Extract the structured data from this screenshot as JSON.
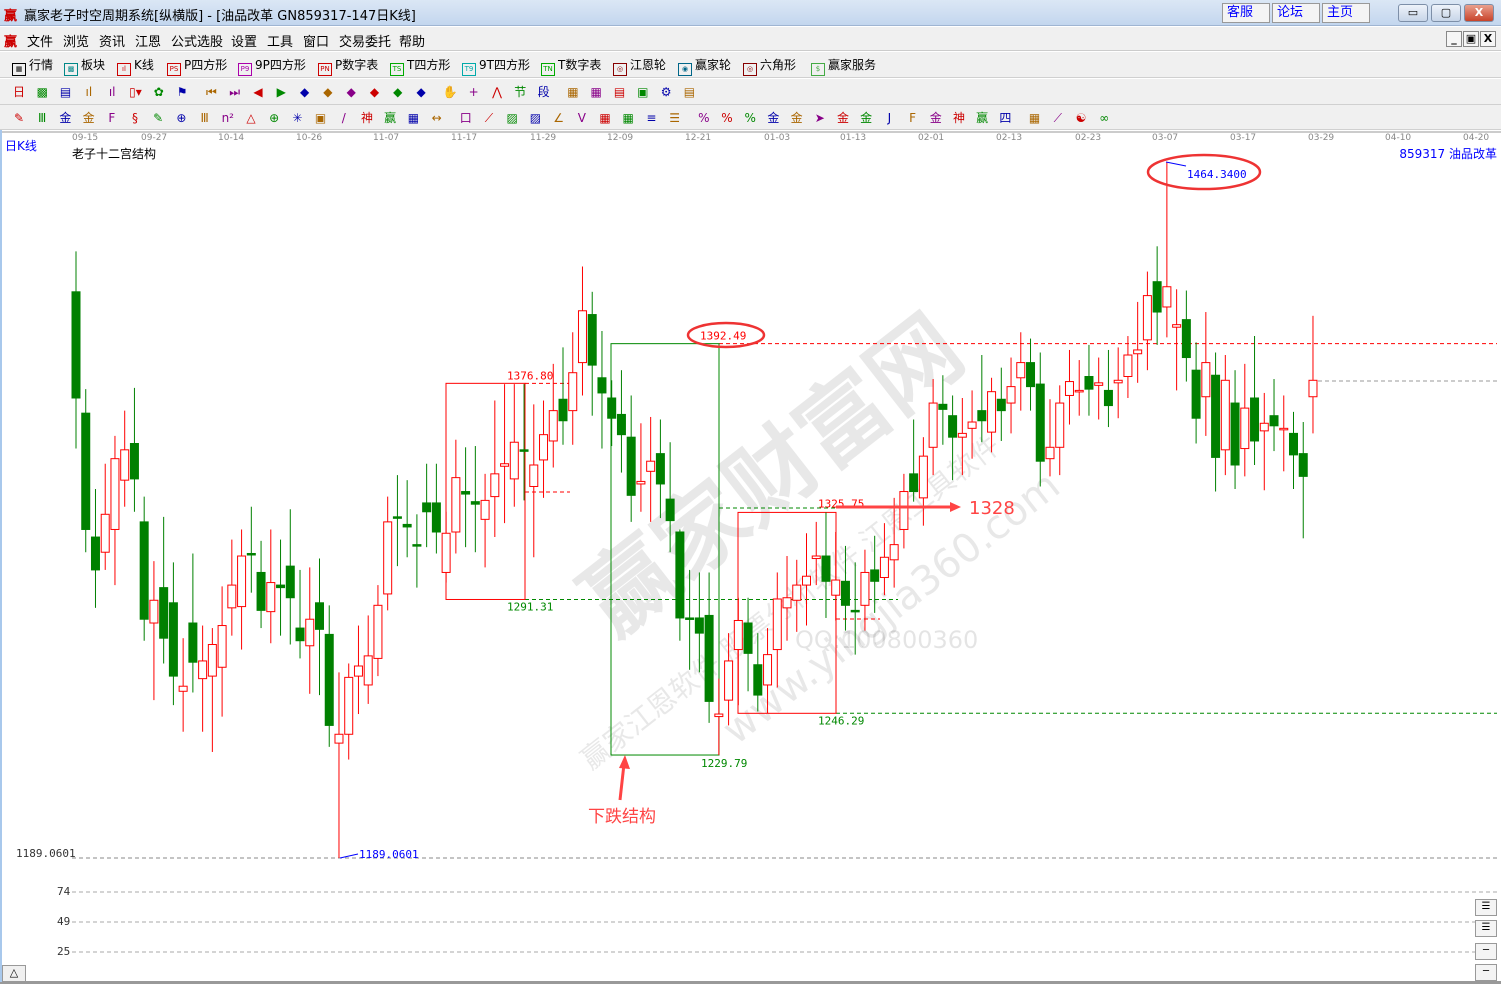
{
  "window": {
    "logo": "赢",
    "title": "赢家老子时空周期系统[纵横版] - [油品改革  GN859317-147日K线]",
    "links": [
      "客服",
      "论坛",
      "主页"
    ],
    "controls": [
      "▭",
      "▢",
      "X"
    ]
  },
  "menu": {
    "logo": "赢",
    "items": [
      "文件",
      "浏览",
      "资讯",
      "江恩",
      "公式选股",
      "设置",
      "工具",
      "窗口",
      "交易委托",
      "帮助"
    ],
    "mdi": [
      "_",
      "▣",
      "X"
    ]
  },
  "toolbar1": [
    {
      "icon": "table-icon",
      "tag": "▦",
      "label": "行情"
    },
    {
      "icon": "blocks-icon",
      "tag": "▩",
      "label": "板块"
    },
    {
      "icon": "kline-icon",
      "tag": "ıl",
      "label": "K线"
    },
    {
      "icon": "ps-icon",
      "tag": "PS",
      "label": "P四方形"
    },
    {
      "icon": "p9-icon",
      "tag": "P9",
      "label": "9P四方形"
    },
    {
      "icon": "pn-icon",
      "tag": "PN",
      "label": "P数字表"
    },
    {
      "icon": "ts-icon",
      "tag": "TS",
      "label": "T四方形"
    },
    {
      "icon": "t9-icon",
      "tag": "T9",
      "label": "9T四方形"
    },
    {
      "icon": "tn-icon",
      "tag": "TN",
      "label": "T数字表"
    },
    {
      "icon": "gann-wheel-icon",
      "tag": "◎",
      "label": "江恩轮"
    },
    {
      "icon": "yingjia-wheel-icon",
      "tag": "◉",
      "label": "赢家轮"
    },
    {
      "icon": "hexagon-icon",
      "tag": "◎",
      "label": "六角形"
    },
    {
      "icon": "dollar-icon",
      "tag": "$",
      "label": "赢家服务"
    }
  ],
  "toolbar2": [
    {
      "icon": "period-day-dropdown-icon",
      "g": "日▾"
    },
    {
      "icon": "overlay-icon",
      "g": "▩"
    },
    {
      "icon": "notes-icon",
      "g": "▤"
    },
    {
      "icon": "bars3-icon",
      "g": "ıl"
    },
    {
      "icon": "bars9-icon",
      "g": "ıl"
    },
    {
      "icon": "candle-dropdown-icon",
      "g": "▯▾"
    },
    {
      "icon": "pattern-icon",
      "g": "✿"
    },
    {
      "icon": "flag-icon",
      "g": "⚑"
    },
    {
      "icon": "first-icon",
      "g": "⏮"
    },
    {
      "icon": "last-icon",
      "g": "⏭"
    },
    {
      "icon": "prev-icon",
      "g": "◀"
    },
    {
      "icon": "next-icon",
      "g": "▶"
    },
    {
      "icon": "zoom-left-icon",
      "g": "◆"
    },
    {
      "icon": "zoom-right-icon",
      "g": "◆"
    },
    {
      "icon": "expand-h-icon",
      "g": "◆"
    },
    {
      "icon": "shrink-h-icon",
      "g": "◆"
    },
    {
      "icon": "expand-all-icon",
      "g": "◆"
    },
    {
      "icon": "move-all-icon",
      "g": "◆"
    },
    {
      "icon": "hand-icon",
      "g": "✋"
    },
    {
      "icon": "crosshair-icon",
      "g": "+"
    },
    {
      "icon": "zigzag-icon",
      "g": "⋀"
    },
    {
      "icon": "node-icon",
      "g": "节"
    },
    {
      "icon": "segment-icon",
      "g": "段"
    },
    {
      "icon": "calendar-icon",
      "g": "▦"
    },
    {
      "icon": "calculator-icon",
      "g": "▦"
    },
    {
      "icon": "document-icon",
      "g": "▤"
    },
    {
      "icon": "save-icon",
      "g": "▣"
    },
    {
      "icon": "network-icon",
      "g": "⚙"
    },
    {
      "icon": "print-icon",
      "g": "▤"
    }
  ],
  "toolbar3": [
    {
      "icon": "pen-icon",
      "g": "✎"
    },
    {
      "icon": "vlines-icon",
      "g": "Ⅲ"
    },
    {
      "icon": "gold-lines-icon",
      "g": "金"
    },
    {
      "icon": "gold-lines2-icon",
      "g": "金"
    },
    {
      "icon": "fib-icon",
      "g": "F"
    },
    {
      "icon": "spiral-icon",
      "g": "§"
    },
    {
      "icon": "ruler-pen-icon",
      "g": "✎"
    },
    {
      "icon": "circle-ruler-icon",
      "g": "⊕"
    },
    {
      "icon": "vlines2-icon",
      "g": "Ⅲ"
    },
    {
      "icon": "n2-icon",
      "g": "n²"
    },
    {
      "icon": "triangle-icon",
      "g": "△"
    },
    {
      "icon": "target-icon",
      "g": "⊕"
    },
    {
      "icon": "star-icon",
      "g": "✳"
    },
    {
      "icon": "square-grid-icon",
      "g": "▣"
    },
    {
      "icon": "lines-icon",
      "g": "/"
    },
    {
      "icon": "shen-icon",
      "g": "神"
    },
    {
      "icon": "ying-icon",
      "g": "赢"
    },
    {
      "icon": "scale-icon",
      "g": "▦"
    },
    {
      "icon": "measure-icon",
      "g": "↔"
    },
    {
      "icon": "box-icon",
      "g": "口"
    },
    {
      "icon": "fan-icon",
      "g": "⟋"
    },
    {
      "icon": "grid-fan-icon",
      "g": "▨"
    },
    {
      "icon": "grid-fan2-icon",
      "g": "▨"
    },
    {
      "icon": "angle-icon",
      "g": "∠"
    },
    {
      "icon": "vshape-icon",
      "g": "V"
    },
    {
      "icon": "grid-icon",
      "g": "▦"
    },
    {
      "icon": "grid2-icon",
      "g": "▦"
    },
    {
      "icon": "parallel-icon",
      "g": "≡"
    },
    {
      "icon": "table-lines-icon",
      "g": "☰"
    },
    {
      "icon": "percent-slash-icon",
      "g": "%"
    },
    {
      "icon": "percent-icon",
      "g": "%"
    },
    {
      "icon": "percent-lines-icon",
      "g": "%"
    },
    {
      "icon": "gold-circle-icon",
      "g": "金"
    },
    {
      "icon": "gold-lines3-icon",
      "g": "金"
    },
    {
      "icon": "arrow-lines-icon",
      "g": "➤"
    },
    {
      "icon": "gold-angle-icon",
      "g": "金"
    },
    {
      "icon": "gold-box-icon",
      "g": "金"
    },
    {
      "icon": "j-angle-icon",
      "g": "J"
    },
    {
      "icon": "f-angle-icon",
      "g": "F"
    },
    {
      "icon": "gold-angle2-icon",
      "g": "金"
    },
    {
      "icon": "shen-angle-icon",
      "g": "神"
    },
    {
      "icon": "ying-angle-icon",
      "g": "赢"
    },
    {
      "icon": "four-angle-icon",
      "g": "四"
    },
    {
      "icon": "cross-grid-icon",
      "g": "▦"
    },
    {
      "icon": "chart-line-icon",
      "g": "⟋"
    },
    {
      "icon": "yinyang-icon",
      "g": "☯"
    },
    {
      "icon": "infinity-icon",
      "g": "∞"
    }
  ],
  "chart": {
    "period_label": "日K线",
    "indicator_title": "老子十二宫结构",
    "code_name": "859317 油品改革",
    "dates": [
      "09-15",
      "09-27",
      "10-14",
      "10-26",
      "11-07",
      "11-17",
      "11-29",
      "12-09",
      "12-21",
      "01-03",
      "01-13",
      "02-01",
      "02-13",
      "02-23",
      "03-07",
      "03-17",
      "03-29",
      "04-10",
      "04-20"
    ],
    "low_label_axis": "1189.0601",
    "low_label": "1189.0601",
    "high_label": "1464.3400",
    "levels": {
      "a_high": "1376.80",
      "a_low": "1291.31",
      "b_high": "1392.49",
      "b_low": "1229.79",
      "c_high": "1325.75",
      "c_low": "1246.29"
    },
    "annotations": {
      "target": "1328",
      "structure": "下跌结构"
    },
    "indicator_axis": [
      "74",
      "49",
      "25"
    ],
    "watermark": [
      "赢家财富网",
      "赢家江恩软件 股票分析软件 江恩工具软件",
      "www.yingjia360.com",
      "QQ:100800360"
    ],
    "colors": {
      "up": "#ff0000",
      "down": "#008000",
      "high_low": "#0000ff"
    },
    "side_buttons": [
      "☰",
      "☰",
      "─",
      "─"
    ],
    "corner_button": "△"
  },
  "chart_data": {
    "type": "candlestick",
    "price_range": [
      1189.06,
      1464.34
    ],
    "fields": [
      "open",
      "high",
      "low",
      "close"
    ],
    "candles": [
      [
        1413,
        1429,
        1351,
        1371
      ],
      [
        1365,
        1374.5,
        1310,
        1319
      ],
      [
        1316,
        1335,
        1288,
        1303
      ],
      [
        1310,
        1345,
        1303,
        1325
      ],
      [
        1319,
        1356,
        1297,
        1347
      ],
      [
        1338.5,
        1366,
        1328,
        1350.5
      ],
      [
        1353,
        1375,
        1326,
        1339
      ],
      [
        1322,
        1332,
        1275,
        1283.5
      ],
      [
        1282,
        1306.5,
        1251.5,
        1291
      ],
      [
        1296,
        1324,
        1266,
        1276
      ],
      [
        1290,
        1306,
        1249.5,
        1261
      ],
      [
        1255,
        1276,
        1239,
        1257
      ],
      [
        1282,
        1309.5,
        1254.5,
        1266.5
      ],
      [
        1260,
        1281,
        1239,
        1267
      ],
      [
        1261,
        1280,
        1231,
        1273.5
      ],
      [
        1264.5,
        1296.5,
        1245,
        1281
      ],
      [
        1288,
        1315,
        1277,
        1297
      ],
      [
        1288.5,
        1319,
        1271.5,
        1308.5
      ],
      [
        1309.5,
        1328,
        1294,
        1309
      ],
      [
        1302,
        1314.5,
        1280,
        1287
      ],
      [
        1286.5,
        1319,
        1274,
        1298
      ],
      [
        1297,
        1315,
        1277,
        1296
      ],
      [
        1304.5,
        1327,
        1273.5,
        1292
      ],
      [
        1280,
        1303,
        1268,
        1275
      ],
      [
        1273,
        1304,
        1254,
        1283.5
      ],
      [
        1290,
        1307.5,
        1253.5,
        1279.5
      ],
      [
        1277.5,
        1289,
        1233,
        1241.5
      ],
      [
        1234.5,
        1262.5,
        1189.06,
        1238
      ],
      [
        1238,
        1266,
        1228,
        1260.5
      ],
      [
        1261,
        1281,
        1246,
        1265
      ],
      [
        1257.5,
        1285,
        1250,
        1269
      ],
      [
        1268,
        1297,
        1261,
        1289
      ],
      [
        1293.5,
        1332,
        1287,
        1322
      ],
      [
        1324,
        1340.5,
        1304.5,
        1323.5
      ],
      [
        1321,
        1338.5,
        1308,
        1320
      ],
      [
        1313,
        1325,
        1296,
        1312.5
      ],
      [
        1329.5,
        1345,
        1312,
        1326
      ],
      [
        1329.5,
        1345,
        1309.5,
        1318
      ],
      [
        1302,
        1326,
        1298,
        1317.5
      ],
      [
        1318,
        1354.5,
        1309.5,
        1339.5
      ],
      [
        1334,
        1351.5,
        1312,
        1333
      ],
      [
        1330,
        1352,
        1310,
        1329
      ],
      [
        1323,
        1341,
        1304,
        1330.5
      ],
      [
        1332,
        1370,
        1316,
        1341
      ],
      [
        1344,
        1376.5,
        1321.5,
        1345
      ],
      [
        1339,
        1376.5,
        1328,
        1353.5
      ],
      [
        1350.5,
        1376.5,
        1330.5,
        1350
      ],
      [
        1336,
        1368.5,
        1308,
        1344.5
      ],
      [
        1346.5,
        1370,
        1331.5,
        1356.5
      ],
      [
        1354,
        1384.5,
        1343.5,
        1366
      ],
      [
        1370.5,
        1391,
        1352.5,
        1362
      ],
      [
        1366,
        1397,
        1352.5,
        1381
      ],
      [
        1385,
        1423,
        1372,
        1405.5
      ],
      [
        1404,
        1413,
        1364,
        1384
      ],
      [
        1379,
        1397.5,
        1351,
        1373
      ],
      [
        1371,
        1378,
        1352,
        1363
      ],
      [
        1364.5,
        1382,
        1341.5,
        1356.5
      ],
      [
        1355.5,
        1372,
        1322,
        1332.5
      ],
      [
        1337,
        1361,
        1326,
        1338
      ],
      [
        1342,
        1363.5,
        1322,
        1346
      ],
      [
        1349,
        1362.5,
        1323.5,
        1337
      ],
      [
        1331,
        1353.5,
        1310,
        1322.5
      ],
      [
        1318,
        1319,
        1275,
        1284
      ],
      [
        1284,
        1303,
        1263.5,
        1283.5
      ],
      [
        1284,
        1302,
        1262.5,
        1278
      ],
      [
        1285,
        1302,
        1242.5,
        1251
      ],
      [
        1245,
        1260,
        1229.79,
        1246
      ],
      [
        1251.5,
        1278,
        1241.5,
        1267
      ],
      [
        1271.5,
        1292,
        1249.5,
        1283
      ],
      [
        1282,
        1292,
        1255,
        1270
      ],
      [
        1265.5,
        1278,
        1247,
        1253.5
      ],
      [
        1257.5,
        1280,
        1246.29,
        1269.5
      ],
      [
        1271.5,
        1302,
        1256.5,
        1291.5
      ],
      [
        1288,
        1308.5,
        1275,
        1292
      ],
      [
        1291,
        1307,
        1278.5,
        1297
      ],
      [
        1297,
        1317.5,
        1281,
        1300.5
      ],
      [
        1307.5,
        1322,
        1297,
        1308.5
      ],
      [
        1308.5,
        1325.75,
        1284,
        1298.5
      ],
      [
        1293,
        1318,
        1283,
        1299
      ],
      [
        1298.5,
        1312.5,
        1279,
        1289
      ],
      [
        1287,
        1306,
        1269.5,
        1286.5
      ],
      [
        1289,
        1311,
        1279,
        1302
      ],
      [
        1303,
        1316.5,
        1286,
        1298.5
      ],
      [
        1300,
        1321.5,
        1293,
        1308
      ],
      [
        1307,
        1331.5,
        1296,
        1313
      ],
      [
        1319,
        1341,
        1311.5,
        1334
      ],
      [
        1341,
        1362.5,
        1330,
        1334
      ],
      [
        1331.5,
        1355.5,
        1320.5,
        1348
      ],
      [
        1351.5,
        1378.5,
        1340.5,
        1369
      ],
      [
        1368.5,
        1380,
        1352.5,
        1366.5
      ],
      [
        1364,
        1372,
        1338.5,
        1355.5
      ],
      [
        1355.5,
        1371,
        1340.5,
        1357
      ],
      [
        1359,
        1374,
        1347,
        1361.5
      ],
      [
        1366,
        1388,
        1353.5,
        1362
      ],
      [
        1357.5,
        1379,
        1349.5,
        1373.5
      ],
      [
        1370.5,
        1383,
        1354,
        1366
      ],
      [
        1369,
        1387,
        1357,
        1375.5
      ],
      [
        1379,
        1397,
        1366,
        1385
      ],
      [
        1385,
        1394.5,
        1366,
        1375.5
      ],
      [
        1376.5,
        1389,
        1336,
        1346
      ],
      [
        1347,
        1370.5,
        1340,
        1351.5
      ],
      [
        1351.5,
        1376,
        1340.5,
        1369
      ],
      [
        1372,
        1390,
        1360.5,
        1377.5
      ],
      [
        1374,
        1386,
        1364,
        1374
      ],
      [
        1379.5,
        1392,
        1364,
        1374.5
      ],
      [
        1376,
        1387,
        1362.5,
        1377
      ],
      [
        1374,
        1390,
        1359.5,
        1368
      ],
      [
        1377,
        1391,
        1363,
        1378
      ],
      [
        1379.5,
        1395.5,
        1371,
        1388
      ],
      [
        1388.5,
        1409,
        1377,
        1390
      ],
      [
        1394,
        1421,
        1382,
        1411.5
      ],
      [
        1417,
        1431,
        1392,
        1405
      ],
      [
        1407,
        1464.34,
        1395,
        1415
      ],
      [
        1399,
        1414,
        1374,
        1400
      ],
      [
        1402,
        1413.5,
        1377.5,
        1387
      ],
      [
        1382,
        1393,
        1353,
        1363
      ],
      [
        1371.5,
        1405,
        1356,
        1385
      ],
      [
        1380,
        1389,
        1334,
        1347.5
      ],
      [
        1350.5,
        1388,
        1340.5,
        1378
      ],
      [
        1369,
        1382,
        1335,
        1344.5
      ],
      [
        1351,
        1384.5,
        1340,
        1367
      ],
      [
        1371,
        1395.5,
        1344.5,
        1354
      ],
      [
        1358,
        1373,
        1334.5,
        1361
      ],
      [
        1364,
        1378.5,
        1350,
        1360
      ],
      [
        1359,
        1372,
        1342,
        1359
      ],
      [
        1357,
        1365.5,
        1335,
        1348.5
      ],
      [
        1349,
        1361.5,
        1315.5,
        1340
      ],
      [
        1371.5,
        1403.5,
        1357,
        1378
      ]
    ]
  }
}
